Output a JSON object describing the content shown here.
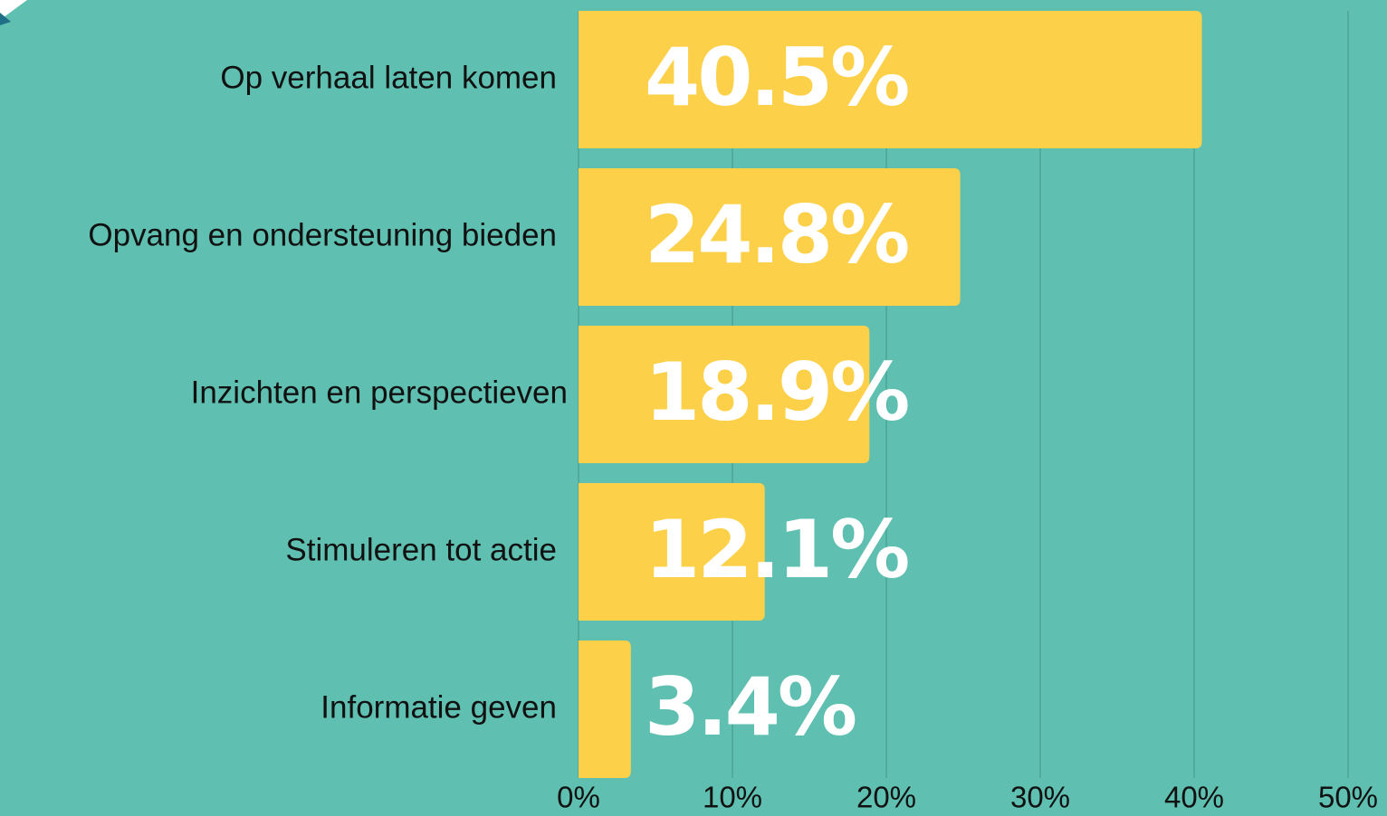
{
  "chart_data": {
    "type": "bar",
    "orientation": "horizontal",
    "categories": [
      "Op verhaal laten komen",
      "Opvang en ondersteuning bieden",
      "Inzichten en perspectieven",
      "Stimuleren tot actie",
      "Informatie geven"
    ],
    "values": [
      40.5,
      24.8,
      18.9,
      12.1,
      3.4
    ],
    "value_labels": [
      "40.5%",
      "24.8%",
      "18.9%",
      "12.1%",
      "3.4%"
    ],
    "color": "#fdd04a",
    "xlim": [
      0,
      50
    ],
    "xticks": [
      {
        "value": 0,
        "label": "0%"
      },
      {
        "value": 10,
        "label": "10%"
      },
      {
        "value": 20,
        "label": "20%"
      },
      {
        "value": 30,
        "label": "30%"
      },
      {
        "value": 40,
        "label": "40%"
      },
      {
        "value": 50,
        "label": "50%"
      }
    ],
    "grid": true
  }
}
